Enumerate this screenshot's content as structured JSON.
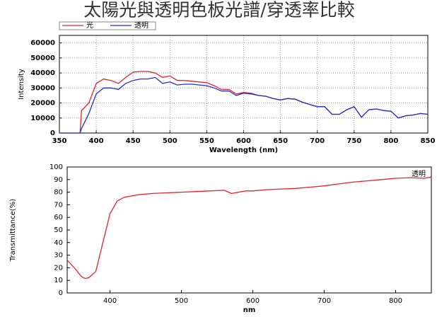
{
  "title": "太陽光與透明色板光譜/穿透率比較",
  "chart_data": [
    {
      "type": "line",
      "xlabel": "Wavelength (nm)",
      "ylabel": "Intensity",
      "x": [
        350,
        370,
        378,
        380,
        390,
        400,
        410,
        420,
        430,
        440,
        450,
        460,
        470,
        480,
        490,
        500,
        510,
        520,
        530,
        540,
        550,
        560,
        570,
        580,
        590,
        600,
        610,
        620,
        630,
        640,
        650,
        660,
        670,
        680,
        690,
        700,
        710,
        720,
        730,
        740,
        750,
        760,
        770,
        780,
        790,
        800,
        810,
        820,
        830,
        840,
        850
      ],
      "series": [
        {
          "name": "光",
          "color": "#e8202a",
          "values": [
            0,
            0,
            0,
            15000,
            20000,
            33000,
            36000,
            35000,
            33000,
            37000,
            40500,
            41000,
            41000,
            40000,
            37000,
            38000,
            35000,
            35000,
            34500,
            34000,
            33500,
            31500,
            29000,
            29000,
            26000,
            27000,
            26500,
            25000,
            24500,
            23000,
            22000,
            23000,
            22500,
            20500,
            19000,
            17500,
            17500,
            12500,
            12500,
            15500,
            17500,
            10500,
            15500,
            16000,
            15000,
            14500,
            10000,
            11500,
            12000,
            13000,
            12500
          ]
        },
        {
          "name": "透明",
          "color": "#1f2fd0",
          "values": [
            0,
            0,
            0,
            3000,
            13000,
            26000,
            30000,
            30000,
            29000,
            33000,
            35000,
            36000,
            36000,
            37000,
            33000,
            34000,
            32000,
            32500,
            32500,
            32000,
            31500,
            30000,
            28000,
            28000,
            25000,
            26500,
            26000,
            25000,
            24500,
            23000,
            22000,
            23000,
            22500,
            20500,
            19000,
            17500,
            17500,
            12500,
            12500,
            15500,
            17500,
            10500,
            15500,
            16000,
            15000,
            14500,
            10000,
            11500,
            12000,
            13000,
            12500
          ]
        }
      ],
      "xlim": [
        350,
        850
      ],
      "xticks": [
        350,
        400,
        450,
        500,
        550,
        600,
        650,
        700,
        750,
        800,
        850
      ],
      "ylim": [
        0,
        65000
      ],
      "yticks": [
        0,
        10000,
        20000,
        30000,
        40000,
        50000,
        60000
      ],
      "grid": true,
      "legend": "top-left"
    },
    {
      "type": "line",
      "xlabel": "nm",
      "ylabel": "Transmittance(%)",
      "x": [
        340,
        350,
        360,
        365,
        370,
        380,
        390,
        400,
        410,
        420,
        440,
        460,
        480,
        500,
        520,
        540,
        560,
        570,
        580,
        590,
        600,
        620,
        640,
        660,
        680,
        700,
        720,
        740,
        760,
        780,
        800,
        820,
        840,
        850
      ],
      "series": [
        {
          "name": "透明",
          "color": "#e8202a",
          "values": [
            26,
            20,
            13,
            11.5,
            12,
            17,
            40,
            63,
            73,
            76,
            78,
            79,
            79.5,
            80,
            80.5,
            81,
            81.5,
            79,
            80,
            81,
            81,
            82,
            82.5,
            83,
            84,
            85,
            86.5,
            88,
            89,
            90,
            91,
            91.5,
            91,
            92
          ]
        }
      ],
      "xlim": [
        340,
        850
      ],
      "xticks": [
        400,
        500,
        600,
        700,
        800
      ],
      "ylim": [
        0,
        100
      ],
      "yticks": [
        0,
        10,
        20,
        30,
        40,
        50,
        60,
        70,
        80,
        90,
        100
      ],
      "grid": false,
      "legend": "top-right",
      "legend_text_color": "#1f2fd0"
    }
  ]
}
